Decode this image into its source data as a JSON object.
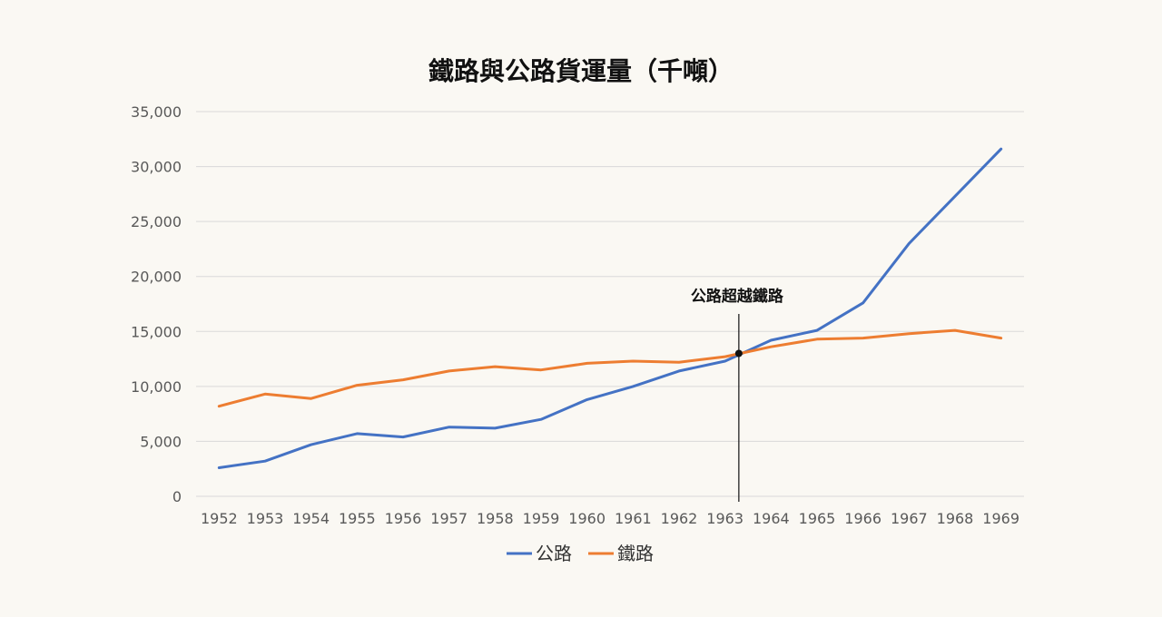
{
  "chart_data": {
    "type": "line",
    "title": "鐵路與公路貨運量（千噸）",
    "xlabel": "",
    "ylabel": "",
    "x": [
      "1952",
      "1953",
      "1954",
      "1955",
      "1956",
      "1957",
      "1958",
      "1959",
      "1960",
      "1961",
      "1962",
      "1963",
      "1964",
      "1965",
      "1966",
      "1967",
      "1968",
      "1969"
    ],
    "series": [
      {
        "name": "公路",
        "color": "#4472c4",
        "values": [
          2600,
          3200,
          4700,
          5700,
          5400,
          6300,
          6200,
          7000,
          8800,
          10000,
          11400,
          12300,
          14200,
          15100,
          17600,
          23000,
          27300,
          31600
        ]
      },
      {
        "name": "鐵路",
        "color": "#ed7d31",
        "values": [
          8200,
          9300,
          8900,
          10100,
          10600,
          11400,
          11800,
          11500,
          12100,
          12300,
          12200,
          12700,
          13600,
          14300,
          14400,
          14800,
          15100,
          14400
        ]
      }
    ],
    "ylim": [
      0,
      35000
    ],
    "yticks": [
      0,
      5000,
      10000,
      15000,
      20000,
      25000,
      30000,
      35000
    ],
    "ytick_labels": [
      "0",
      "5,000",
      "10,000",
      "15,000",
      "20,000",
      "25,000",
      "30,000",
      "35,000"
    ],
    "grid": true,
    "legend_position": "bottom",
    "annotation": {
      "text": "公路超越鐵路",
      "x_index": 11.3,
      "y": 13000
    }
  }
}
